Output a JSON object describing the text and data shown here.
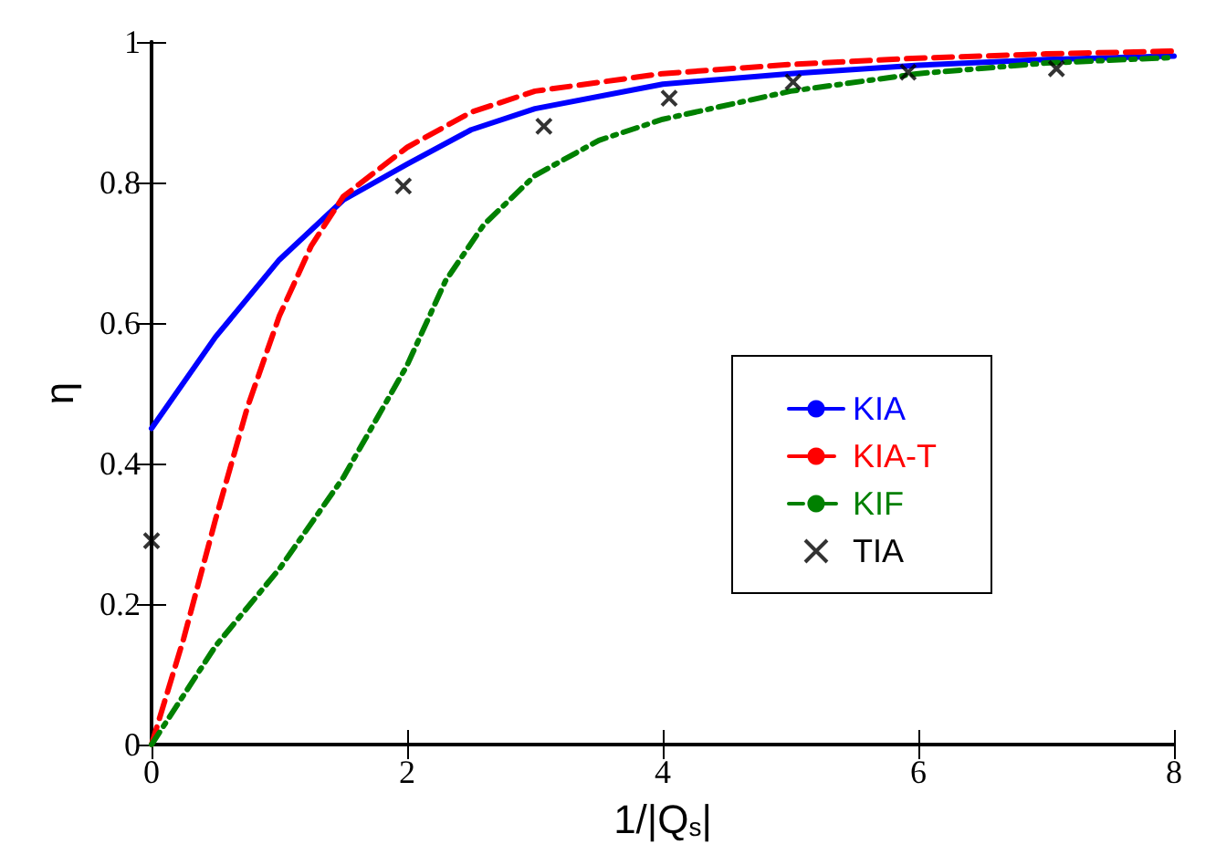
{
  "chart_data": {
    "type": "line",
    "xlabel": "1/|Q$_{s}$|",
    "ylabel": "η",
    "xlim": [
      0,
      8
    ],
    "ylim": [
      0,
      1
    ],
    "xticks": [
      0,
      2,
      4,
      6,
      8
    ],
    "yticks": [
      0,
      0.2,
      0.4,
      0.6,
      0.8,
      1
    ],
    "grid": false,
    "legend": "right",
    "series": [
      {
        "name": "KIA",
        "color": "#0000ff",
        "line_style": "solid",
        "marker": "none",
        "x": [
          0,
          0.5,
          1,
          1.5,
          2,
          2.5,
          3,
          4,
          5,
          6,
          7,
          8
        ],
        "values": [
          0.45,
          0.58,
          0.69,
          0.775,
          0.826,
          0.875,
          0.905,
          0.94,
          0.955,
          0.967,
          0.975,
          0.98
        ]
      },
      {
        "name": "KIA-T",
        "color": "#ff0000",
        "line_style": "dashed",
        "marker": "none",
        "x": [
          0,
          0.25,
          0.5,
          0.75,
          1,
          1.25,
          1.5,
          2,
          2.5,
          3,
          4,
          5,
          6,
          7,
          8
        ],
        "values": [
          0,
          0.15,
          0.32,
          0.48,
          0.61,
          0.71,
          0.78,
          0.85,
          0.9,
          0.93,
          0.955,
          0.968,
          0.977,
          0.983,
          0.987
        ]
      },
      {
        "name": "KIF",
        "color": "#008000",
        "line_style": "dotted",
        "marker": "none",
        "x": [
          0,
          0.5,
          1,
          1.5,
          2,
          2.3,
          2.6,
          3,
          3.5,
          4,
          5,
          6,
          7,
          8
        ],
        "values": [
          0,
          0.14,
          0.25,
          0.38,
          0.54,
          0.66,
          0.74,
          0.81,
          0.86,
          0.89,
          0.93,
          0.955,
          0.97,
          0.978
        ]
      },
      {
        "name": "TIA",
        "color": "#000000",
        "type": "scatter",
        "marker": "cross",
        "x": [
          0,
          1.97,
          3.07,
          4.05,
          5.02,
          5.92,
          7.08
        ],
        "values": [
          0.29,
          0.795,
          0.88,
          0.92,
          0.943,
          0.957,
          0.962
        ]
      }
    ]
  }
}
